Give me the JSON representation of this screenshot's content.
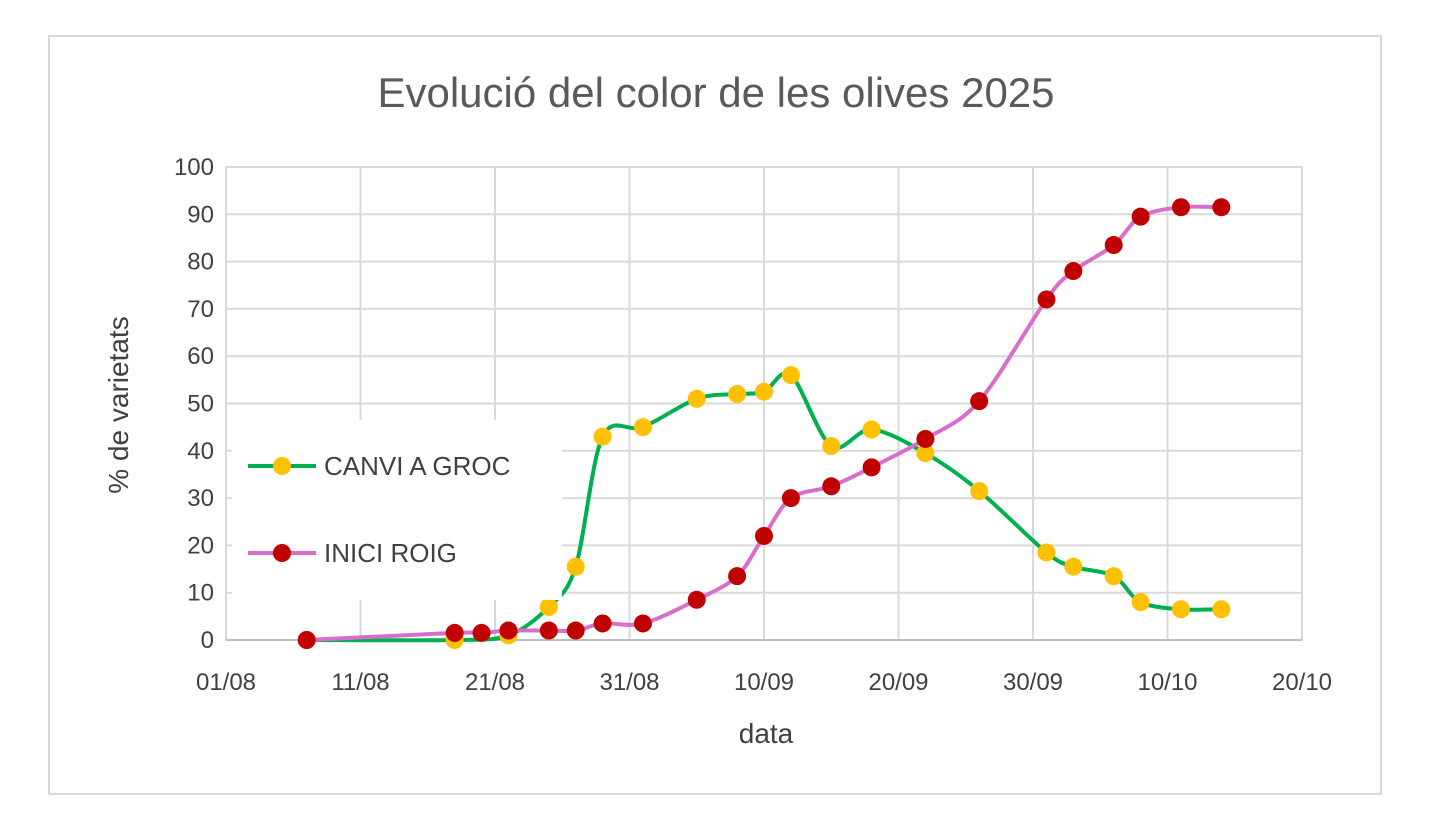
{
  "chart_data": {
    "type": "line",
    "title": "Evolució del color de les olives 2025",
    "xlabel": "data",
    "ylabel": "% de varietats",
    "x_axis": {
      "type": "date",
      "year": 2025,
      "range": [
        "2025-08-01",
        "2025-10-20"
      ],
      "ticks": [
        "01/08",
        "11/08",
        "21/08",
        "31/08",
        "10/09",
        "20/09",
        "30/09",
        "10/10",
        "20/10"
      ]
    },
    "ylim": [
      0,
      100
    ],
    "yticks": [
      "0",
      "10",
      "20",
      "30",
      "40",
      "50",
      "60",
      "70",
      "80",
      "90",
      "100"
    ],
    "grid": true,
    "legend_position": "left",
    "smooth": true,
    "series": [
      {
        "name": "CANVI A GROC",
        "line_color": "#00b050",
        "marker_color": "#ffc000",
        "points": [
          {
            "x": "2025-08-07",
            "y": 0
          },
          {
            "x": "2025-08-18",
            "y": 0
          },
          {
            "x": "2025-08-22",
            "y": 1
          },
          {
            "x": "2025-08-25",
            "y": 7
          },
          {
            "x": "2025-08-27",
            "y": 15.5
          },
          {
            "x": "2025-08-29",
            "y": 43
          },
          {
            "x": "2025-09-01",
            "y": 45
          },
          {
            "x": "2025-09-05",
            "y": 51
          },
          {
            "x": "2025-09-08",
            "y": 52
          },
          {
            "x": "2025-09-10",
            "y": 52.5
          },
          {
            "x": "2025-09-12",
            "y": 56
          },
          {
            "x": "2025-09-15",
            "y": 41
          },
          {
            "x": "2025-09-18",
            "y": 44.5
          },
          {
            "x": "2025-09-22",
            "y": 39.5
          },
          {
            "x": "2025-09-26",
            "y": 31.5
          },
          {
            "x": "2025-10-01",
            "y": 18.5
          },
          {
            "x": "2025-10-03",
            "y": 15.5
          },
          {
            "x": "2025-10-06",
            "y": 13.5
          },
          {
            "x": "2025-10-08",
            "y": 8
          },
          {
            "x": "2025-10-11",
            "y": 6.5
          },
          {
            "x": "2025-10-14",
            "y": 6.5
          }
        ]
      },
      {
        "name": "INICI ROIG",
        "line_color": "#d86ecc",
        "marker_color": "#c00000",
        "points": [
          {
            "x": "2025-08-07",
            "y": 0
          },
          {
            "x": "2025-08-18",
            "y": 1.5
          },
          {
            "x": "2025-08-20",
            "y": 1.5
          },
          {
            "x": "2025-08-22",
            "y": 2
          },
          {
            "x": "2025-08-25",
            "y": 2
          },
          {
            "x": "2025-08-27",
            "y": 2
          },
          {
            "x": "2025-08-29",
            "y": 3.5
          },
          {
            "x": "2025-09-01",
            "y": 3.5
          },
          {
            "x": "2025-09-05",
            "y": 8.5
          },
          {
            "x": "2025-09-08",
            "y": 13.5
          },
          {
            "x": "2025-09-10",
            "y": 22
          },
          {
            "x": "2025-09-12",
            "y": 30
          },
          {
            "x": "2025-09-15",
            "y": 32.5
          },
          {
            "x": "2025-09-18",
            "y": 36.5
          },
          {
            "x": "2025-09-22",
            "y": 42.5
          },
          {
            "x": "2025-09-26",
            "y": 50.5
          },
          {
            "x": "2025-10-01",
            "y": 72
          },
          {
            "x": "2025-10-03",
            "y": 78
          },
          {
            "x": "2025-10-06",
            "y": 83.5
          },
          {
            "x": "2025-10-08",
            "y": 89.5
          },
          {
            "x": "2025-10-11",
            "y": 91.5
          },
          {
            "x": "2025-10-14",
            "y": 91.5
          }
        ]
      }
    ]
  }
}
